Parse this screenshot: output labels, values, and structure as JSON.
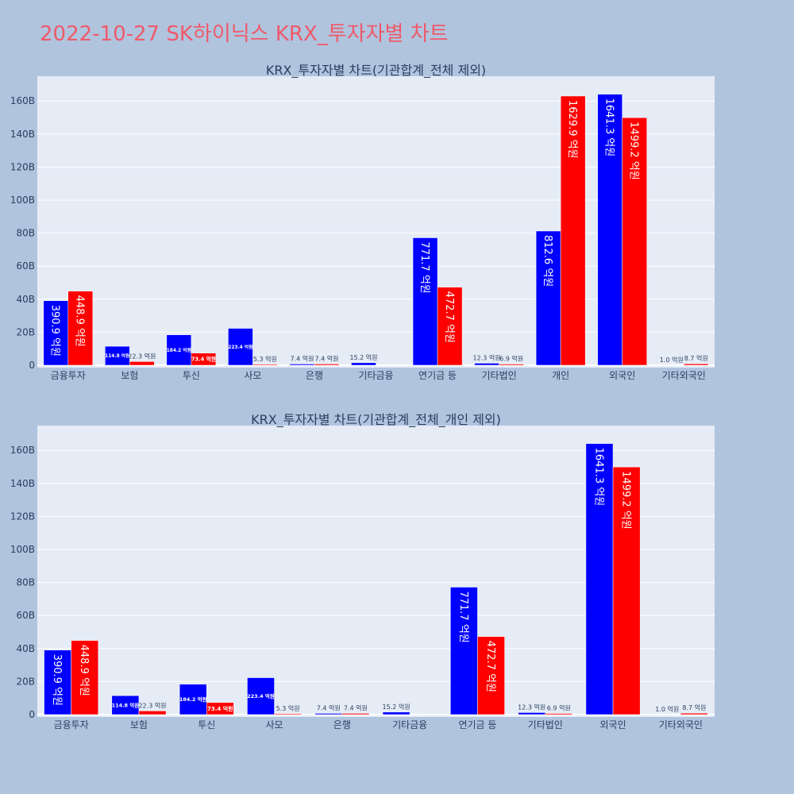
{
  "title": "2022-10-27 SK하이닉스 KRX_투자자별 차트",
  "colors": {
    "buy": "#0000ff",
    "sell": "#ff0000"
  },
  "chart_data": [
    {
      "type": "bar",
      "title": "KRX_투자자별 차트(기관합계_전체 제외)",
      "categories": [
        "금융투자",
        "보험",
        "투신",
        "사모",
        "은행",
        "기타금융",
        "연기금 등",
        "기타법인",
        "개인",
        "외국인",
        "기타외국인"
      ],
      "y_ticks": [
        "0",
        "20B",
        "40B",
        "60B",
        "80B",
        "100B",
        "120B",
        "140B",
        "160B"
      ],
      "ylim": [
        0,
        175
      ],
      "grid": true,
      "legend": "none",
      "series": [
        {
          "values": [
            39.09,
            11.48,
            18.42,
            22.34,
            0.74,
            1.52,
            77.17,
            1.23,
            81.26,
            164.13,
            0.1
          ],
          "labels": [
            "390.9 억원",
            "114.8 억원",
            "184.2 억원",
            "223.4 억원",
            "7.4 억원",
            "15.2 억원",
            "771.7 억원",
            "12.3 억원",
            "812.6 억원",
            "1641.3 억원",
            "1.0 억원"
          ]
        },
        {
          "values": [
            44.89,
            2.23,
            7.34,
            0.53,
            0.74,
            0,
            47.27,
            0.69,
            162.99,
            149.92,
            0.87
          ],
          "labels": [
            "448.9 억원",
            "22.3 억원",
            "73.4 억원",
            "5.3 억원",
            "7.4 억원",
            "",
            "472.7 억원",
            "6.9 억원",
            "1629.9 억원",
            "1499.2 억원",
            "8.7 억원"
          ]
        }
      ]
    },
    {
      "type": "bar",
      "title": "KRX_투자자별 차트(기관합계_전체_개인 제외)",
      "categories": [
        "금융투자",
        "보험",
        "투신",
        "사모",
        "은행",
        "기타금융",
        "연기금 등",
        "기타법인",
        "외국인",
        "기타외국인"
      ],
      "y_ticks": [
        "0",
        "20B",
        "40B",
        "60B",
        "80B",
        "100B",
        "120B",
        "140B",
        "160B"
      ],
      "ylim": [
        0,
        175
      ],
      "grid": true,
      "legend": "none",
      "series": [
        {
          "values": [
            39.09,
            11.48,
            18.42,
            22.34,
            0.74,
            1.52,
            77.17,
            1.23,
            164.13,
            0.1
          ],
          "labels": [
            "390.9 억원",
            "114.8 억원",
            "184.2 억원",
            "223.4 억원",
            "7.4 억원",
            "15.2 억원",
            "771.7 억원",
            "12.3 억원",
            "1641.3 억원",
            "1.0 억원"
          ]
        },
        {
          "values": [
            44.89,
            2.23,
            7.34,
            0.53,
            0.74,
            0,
            47.27,
            0.69,
            149.92,
            0.87
          ],
          "labels": [
            "448.9 억원",
            "22.3 억원",
            "73.4 억원",
            "5.3 억원",
            "7.4 억원",
            "",
            "472.7 억원",
            "6.9 억원",
            "1499.2 억원",
            "8.7 억원"
          ]
        }
      ]
    }
  ]
}
